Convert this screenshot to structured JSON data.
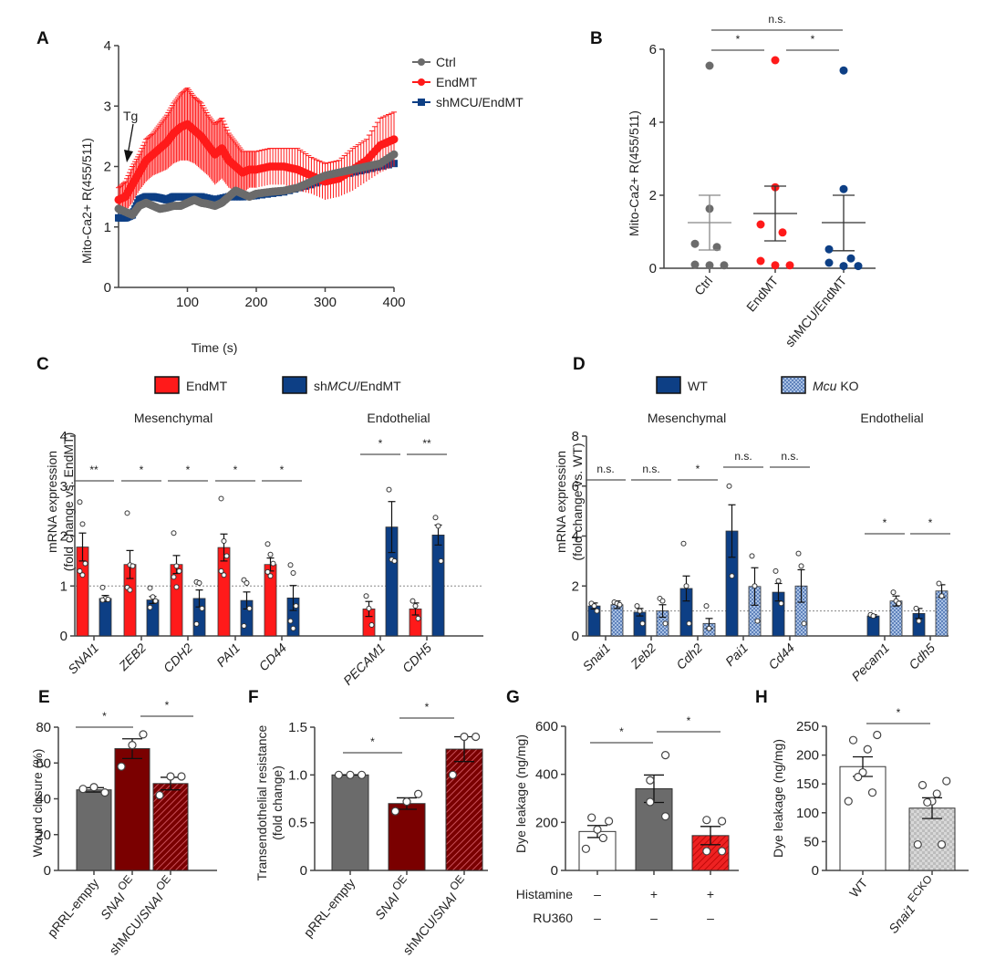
{
  "figure": {
    "colors": {
      "ctrl": "#6b6b6b",
      "endmt": "#ff1a1a",
      "shmcu": "#0d3f85",
      "wt": "#0d3f85",
      "mcuko": "#9fb9df",
      "grey_bar": "#6b6b6b",
      "dark_red": "#7a0000",
      "hatch_red": "#a0202a",
      "bright_red": "#ee2222",
      "white_bar": "#ffffff",
      "check_grey": "#c8c8c8"
    }
  },
  "chart_data": [
    {
      "panel": "A",
      "type": "line",
      "xlabel": "Time (s)",
      "ylabel": "Mito-Ca2+ R(455/511)",
      "xlim": [
        0,
        400
      ],
      "ylim": [
        0,
        4
      ],
      "xticks": [
        100,
        200,
        300,
        400
      ],
      "yticks": [
        0,
        1,
        2,
        3,
        4
      ],
      "annotation": {
        "text": "Tg",
        "x": 10,
        "y": 2.1
      },
      "legend": [
        "Ctrl",
        "EndMT",
        "shMCU/EndMT"
      ],
      "series": [
        {
          "name": "Ctrl",
          "color_key": "ctrl",
          "x": [
            0,
            10,
            20,
            30,
            40,
            50,
            60,
            70,
            80,
            90,
            100,
            110,
            120,
            130,
            140,
            150,
            160,
            170,
            180,
            190,
            200,
            220,
            240,
            260,
            280,
            300,
            320,
            340,
            360,
            380,
            400
          ],
          "y": [
            1.3,
            1.25,
            1.2,
            1.35,
            1.4,
            1.35,
            1.3,
            1.32,
            1.35,
            1.35,
            1.4,
            1.45,
            1.4,
            1.38,
            1.35,
            1.4,
            1.5,
            1.6,
            1.55,
            1.5,
            1.55,
            1.58,
            1.6,
            1.65,
            1.75,
            1.85,
            1.9,
            1.95,
            2.0,
            2.05,
            2.2
          ]
        },
        {
          "name": "EndMT",
          "color_key": "endmt",
          "x": [
            0,
            10,
            20,
            30,
            40,
            50,
            60,
            70,
            80,
            90,
            100,
            110,
            120,
            130,
            140,
            150,
            160,
            170,
            180,
            190,
            200,
            220,
            240,
            260,
            280,
            300,
            320,
            340,
            360,
            380,
            400
          ],
          "y": [
            1.45,
            1.5,
            1.7,
            1.9,
            2.1,
            2.2,
            2.3,
            2.4,
            2.55,
            2.65,
            2.7,
            2.6,
            2.5,
            2.35,
            2.2,
            2.3,
            2.1,
            2.0,
            1.9,
            1.95,
            1.95,
            2.0,
            2.0,
            1.95,
            1.85,
            1.75,
            1.8,
            1.95,
            2.1,
            2.35,
            2.45
          ],
          "err": [
            0.2,
            0.25,
            0.3,
            0.3,
            0.35,
            0.35,
            0.4,
            0.45,
            0.5,
            0.55,
            0.6,
            0.55,
            0.55,
            0.5,
            0.5,
            0.5,
            0.45,
            0.4,
            0.35,
            0.3,
            0.3,
            0.3,
            0.3,
            0.35,
            0.3,
            0.3,
            0.3,
            0.35,
            0.35,
            0.45,
            0.45
          ]
        },
        {
          "name": "shMCU/EndMT",
          "color_key": "shmcu",
          "x": [
            0,
            10,
            20,
            30,
            40,
            50,
            60,
            70,
            80,
            90,
            100,
            120,
            140,
            160,
            180,
            200,
            240,
            280,
            320,
            360,
            400
          ],
          "y": [
            1.15,
            1.15,
            1.2,
            1.45,
            1.5,
            1.5,
            1.48,
            1.45,
            1.5,
            1.5,
            1.5,
            1.5,
            1.45,
            1.5,
            1.5,
            1.52,
            1.58,
            1.7,
            1.85,
            1.95,
            2.05
          ]
        }
      ]
    },
    {
      "panel": "B",
      "type": "scatter",
      "ylabel": "Mito-Ca2+ R(455/511)",
      "ylim": [
        0,
        6
      ],
      "yticks": [
        0,
        2,
        4,
        6
      ],
      "categories": [
        "Ctrl",
        "EndMT",
        "shMCU/EndMT"
      ],
      "groups": [
        {
          "name": "Ctrl",
          "color_key": "ctrl",
          "points": [
            5.55,
            1.63,
            0.67,
            0.58,
            0.1,
            0.08,
            0.08
          ],
          "mean": 1.25,
          "err_low": 0.5,
          "err_high": 2.0
        },
        {
          "name": "EndMT",
          "color_key": "endmt",
          "points": [
            5.7,
            2.22,
            1.2,
            0.98,
            0.2,
            0.08,
            0.08
          ],
          "mean": 1.5,
          "err_low": 0.75,
          "err_high": 2.25
        },
        {
          "name": "shMCU/EndMT",
          "color_key": "shmcu",
          "points": [
            5.42,
            2.17,
            0.52,
            0.27,
            0.15,
            0.06,
            0.06
          ],
          "mean": 1.25,
          "err_low": 0.48,
          "err_high": 2.0
        }
      ],
      "significance": [
        {
          "from": 0,
          "to": 1,
          "label": "*"
        },
        {
          "from": 1,
          "to": 2,
          "label": "*"
        },
        {
          "from": 0,
          "to": 2,
          "label": "n.s."
        }
      ]
    },
    {
      "panel": "C",
      "type": "bar",
      "ylabel_line1": "mRNA expression",
      "ylabel_line2": "(fold change vs. EndMT)",
      "ylim": [
        0,
        4
      ],
      "yticks": [
        0,
        1,
        2,
        3,
        4
      ],
      "reference_line": 1,
      "legend": [
        {
          "label": "EndMT",
          "color_key": "endmt"
        },
        {
          "label": "shMCU/EndMT",
          "color_key": "shmcu"
        }
      ],
      "group_headers": [
        "Mesenchymal",
        "Endothelial"
      ],
      "categories": [
        "SNAI1",
        "ZEB2",
        "CDH2",
        "PAI1",
        "CD44",
        "PECAM1",
        "CDH5"
      ],
      "series": [
        {
          "name": "EndMT",
          "color_key": "endmt",
          "values": [
            1.78,
            1.43,
            1.43,
            1.77,
            1.43,
            0.54,
            0.54
          ],
          "err": [
            0.28,
            0.28,
            0.18,
            0.27,
            0.13,
            0.15,
            0.12
          ]
        },
        {
          "name": "shMCU/EndMT",
          "color_key": "shmcu",
          "values": [
            0.75,
            0.72,
            0.75,
            0.71,
            0.76,
            2.18,
            2.02
          ],
          "err": [
            0.06,
            0.07,
            0.17,
            0.17,
            0.25,
            0.51,
            0.2
          ]
        }
      ],
      "points": [
        [
          [
            2.68,
            2.24,
            1.45,
            1.3,
            1.22
          ],
          [
            0.97,
            0.75,
            0.73,
            0.72
          ]
        ],
        [
          [
            2.46,
            1.42,
            1.4,
            0.97,
            0.92
          ],
          [
            0.96,
            0.78,
            0.7,
            0.57
          ]
        ],
        [
          [
            2.06,
            1.4,
            1.3,
            1.18,
            0.98
          ],
          [
            1.08,
            1.06,
            0.55,
            0.24
          ]
        ],
        [
          [
            2.75,
            1.9,
            1.6,
            1.3,
            1.22
          ],
          [
            1.12,
            1.06,
            0.55,
            0.2
          ]
        ],
        [
          [
            1.84,
            1.63,
            1.45,
            1.28,
            1.2
          ],
          [
            1.42,
            1.26,
            0.6,
            0.3,
            0.15
          ]
        ],
        [
          [
            0.8,
            0.55,
            0.22
          ],
          [
            2.93,
            1.53,
            1.5
          ]
        ],
        [
          [
            0.7,
            0.6,
            0.35
          ],
          [
            2.37,
            2.2,
            1.5
          ]
        ]
      ],
      "significance": [
        "**",
        "*",
        "*",
        "*",
        "*",
        "*",
        "**"
      ]
    },
    {
      "panel": "D",
      "type": "bar",
      "ylabel_line1": "mRNA expression",
      "ylabel_line2": "(fold change vs. WT)",
      "ylim": [
        0,
        8
      ],
      "yticks": [
        0,
        2,
        4,
        6,
        8
      ],
      "reference_line": 1,
      "legend": [
        {
          "label": "WT",
          "color_key": "wt"
        },
        {
          "label": "Mcu KO",
          "color_key": "mcuko"
        }
      ],
      "group_headers": [
        "Mesenchymal",
        "Endothelial"
      ],
      "categories": [
        "Snai1",
        "Zeb2",
        "Cdh2",
        "Pai1",
        "Cd44",
        "Pecam1",
        "Cdh5"
      ],
      "series": [
        {
          "name": "WT",
          "color_key": "wt",
          "values": [
            1.2,
            0.95,
            1.9,
            4.2,
            1.75,
            0.8,
            0.9
          ],
          "err": [
            0.12,
            0.15,
            0.5,
            1.05,
            0.35,
            0.05,
            0.2
          ]
        },
        {
          "name": "Mcu KO",
          "color_key": "mcuko",
          "values": [
            1.25,
            1.0,
            0.5,
            1.98,
            2.0,
            1.4,
            1.8
          ],
          "err": [
            0.15,
            0.25,
            0.2,
            0.75,
            0.65,
            0.2,
            0.25
          ]
        }
      ],
      "points": [
        [
          [
            1.3,
            1.2,
            1.0
          ],
          [
            1.35,
            1.3,
            1.25
          ]
        ],
        [
          [
            1.2,
            1.0,
            0.5
          ],
          [
            1.5,
            1.4,
            0.5
          ]
        ],
        [
          [
            3.7,
            2.0,
            0.5
          ],
          [
            1.2,
            0.3
          ]
        ],
        [
          [
            6.0,
            2.4
          ],
          [
            3.2,
            2.0,
            0.6
          ]
        ],
        [
          [
            2.6,
            2.2,
            1.3
          ],
          [
            3.3,
            2.8,
            0.5
          ]
        ],
        [
          [
            0.85,
            0.8
          ],
          [
            1.75,
            1.4,
            1.3
          ]
        ],
        [
          [
            1.1,
            0.6
          ],
          [
            2.1,
            1.6
          ]
        ]
      ],
      "significance": [
        "n.s.",
        "n.s.",
        "*",
        "n.s.",
        "n.s.",
        "*",
        "*"
      ]
    },
    {
      "panel": "E",
      "type": "bar",
      "ylabel": "Wound closure (%)",
      "ylim": [
        0,
        80
      ],
      "yticks": [
        0,
        20,
        40,
        60,
        80
      ],
      "categories": [
        "pRRL-empty",
        "SNAI OE",
        "shMCU/SNAI OE"
      ],
      "values": [
        45,
        68,
        48.5
      ],
      "err": [
        1.2,
        5.5,
        3.5
      ],
      "fill_keys": [
        "grey_bar",
        "dark_red",
        "hatch_red"
      ],
      "points": [
        [
          43.5,
          46.5,
          45.5
        ],
        [
          76,
          70,
          58
        ],
        [
          52.5,
          52.5,
          42
        ]
      ],
      "significance": [
        {
          "from": 0,
          "to": 1,
          "label": "*"
        },
        {
          "from": 1,
          "to": 2,
          "label": "*"
        }
      ]
    },
    {
      "panel": "F",
      "type": "bar",
      "ylabel_line1": "Transendothelial resistance",
      "ylabel_line2": "(fold change)",
      "ylim": [
        0,
        1.5
      ],
      "yticks": [
        0,
        0.5,
        1.0,
        1.5
      ],
      "ytick_labels": [
        "0",
        "0.5",
        "1.0",
        "1.5"
      ],
      "categories": [
        "pRRL-empty",
        "SNAI OE",
        "shMCU/SNAI OE"
      ],
      "values": [
        1.0,
        0.7,
        1.27
      ],
      "err": [
        0.0,
        0.06,
        0.13
      ],
      "fill_keys": [
        "grey_bar",
        "dark_red",
        "hatch_red"
      ],
      "points": [
        [
          1.0,
          1.0,
          1.0
        ],
        [
          0.8,
          0.72,
          0.62
        ],
        [
          1.4,
          1.4,
          1.0
        ]
      ],
      "significance": [
        {
          "from": 0,
          "to": 1,
          "label": "*"
        },
        {
          "from": 1,
          "to": 2,
          "label": "*"
        }
      ]
    },
    {
      "panel": "G",
      "type": "bar",
      "ylabel": "Dye leakage (ng/mg)",
      "ylim": [
        0,
        600
      ],
      "yticks": [
        0,
        200,
        400,
        600
      ],
      "row_labels": [
        "Histamine",
        "RU360"
      ],
      "conditions": [
        [
          "–",
          "+",
          "+"
        ],
        [
          "–",
          "–",
          "–"
        ]
      ],
      "values": [
        162,
        340,
        145
      ],
      "err": [
        25,
        57,
        38
      ],
      "fill_keys": [
        "white_bar",
        "grey_bar",
        "bright_red"
      ],
      "points": [
        [
          205,
          220,
          170,
          135,
          90
        ],
        [
          480,
          375,
          285,
          225
        ],
        [
          205,
          210,
          80,
          80
        ]
      ],
      "significance": [
        {
          "from": 0,
          "to": 1,
          "label": "*"
        },
        {
          "from": 1,
          "to": 2,
          "label": "*"
        }
      ]
    },
    {
      "panel": "H",
      "type": "bar",
      "ylabel": "Dye leakage (ng/mg)",
      "ylim": [
        0,
        250
      ],
      "yticks": [
        0,
        50,
        100,
        150,
        200,
        250
      ],
      "categories": [
        "WT",
        "Snai1 ECKO"
      ],
      "values": [
        180,
        108
      ],
      "err": [
        17,
        18
      ],
      "fill_keys": [
        "white_bar",
        "check_grey"
      ],
      "points": [
        [
          235,
          226,
          210,
          170,
          162,
          135,
          120
        ],
        [
          155,
          148,
          133,
          120,
          118,
          45,
          45
        ]
      ],
      "significance": [
        {
          "from": 0,
          "to": 1,
          "label": "*"
        }
      ]
    }
  ]
}
